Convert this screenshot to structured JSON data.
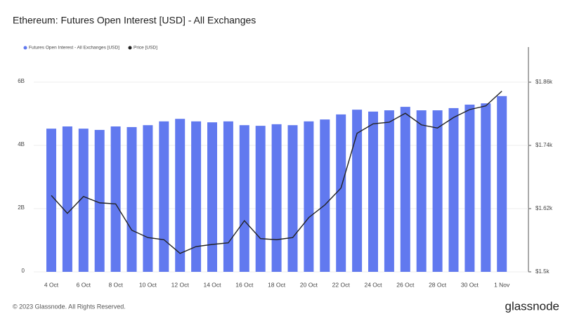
{
  "chart_data": {
    "type": "bar",
    "title": "Ethereum: Futures Open Interest [USD] - All Exchanges",
    "categories": [
      "4 Oct",
      null,
      "6 Oct",
      null,
      "8 Oct",
      null,
      "10 Oct",
      null,
      "12 Oct",
      null,
      "14 Oct",
      null,
      "16 Oct",
      null,
      "18 Oct",
      null,
      "20 Oct",
      null,
      "22 Oct",
      null,
      "24 Oct",
      null,
      "26 Oct",
      null,
      "28 Oct",
      null,
      "30 Oct",
      null,
      "1 Nov"
    ],
    "series": [
      {
        "name": "Futures Open Interest - All Exchanges [USD]",
        "color": "#6179ef",
        "type": "bar",
        "values": [
          4530000000,
          4600000000,
          4530000000,
          4490000000,
          4600000000,
          4580000000,
          4640000000,
          4760000000,
          4840000000,
          4760000000,
          4730000000,
          4760000000,
          4640000000,
          4620000000,
          4670000000,
          4640000000,
          4760000000,
          4820000000,
          4980000000,
          5130000000,
          5070000000,
          5110000000,
          5220000000,
          5110000000,
          5110000000,
          5180000000,
          5290000000,
          5330000000,
          5560000000
        ]
      },
      {
        "name": "Price [USD]",
        "color": "#222222",
        "type": "line",
        "axis": "y2",
        "values": [
          1645,
          1611,
          1643,
          1631,
          1629,
          1579,
          1565,
          1561,
          1535,
          1548,
          1552,
          1555,
          1597,
          1563,
          1561,
          1565,
          1603,
          1627,
          1659,
          1763,
          1781,
          1784,
          1801,
          1779,
          1773,
          1793,
          1808,
          1815,
          1843
        ]
      }
    ],
    "ylim": [
      0,
      7000000000
    ],
    "yticks": [
      0,
      {
        "value": 2000000000,
        "label": "2B"
      },
      {
        "value": 4000000000,
        "label": "4B"
      },
      {
        "value": 6000000000,
        "label": "6B"
      }
    ],
    "y2lim": [
      1500,
      1920
    ],
    "y2ticks": [
      {
        "value": 1500,
        "label": "$1.5k"
      },
      {
        "value": 1620,
        "label": "$1.62k"
      },
      {
        "value": 1740,
        "label": "$1.74k"
      },
      {
        "value": 1860,
        "label": "$1.86k"
      }
    ],
    "grid": true,
    "legend": "top-left"
  },
  "footer": "© 2023 Glassnode. All Rights Reserved.",
  "brand": "glassnode"
}
